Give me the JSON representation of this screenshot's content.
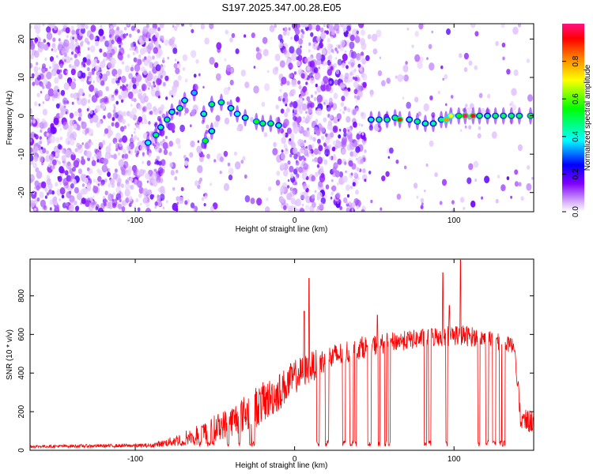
{
  "chart_data": [
    {
      "type": "heatmap",
      "title": "S197.2025.347.00.28.E05",
      "xlabel": "Height of straight line (km)",
      "ylabel": "Frequency (Hz)",
      "xlim": [
        -166,
        150
      ],
      "ylim": [
        -25,
        24
      ],
      "xticks": [
        -100,
        0,
        100
      ],
      "yticks": [
        -20,
        -10,
        0,
        10,
        20
      ],
      "colorbar": {
        "label": "Normalized spectral amplitude",
        "range": [
          0,
          1
        ],
        "ticks": [
          "0.0",
          "0.2",
          "0.4",
          "0.6",
          "0.8"
        ],
        "colors": [
          "#ffffff",
          "#d9b3ff",
          "#8000ff",
          "#0000ff",
          "#00ffff",
          "#00ff00",
          "#ffff00",
          "#ff8000",
          "#ff0000",
          "#ff1080"
        ]
      },
      "noise_segments": [
        {
          "from": -166,
          "to": -82,
          "density": 1.0
        },
        {
          "from": -82,
          "to": -58,
          "density": 0.3
        },
        {
          "from": -58,
          "to": -9,
          "density": 0.15
        },
        {
          "from": -9,
          "to": 44,
          "density": 1.0
        },
        {
          "from": 44,
          "to": 150,
          "density": 0.1
        }
      ],
      "ridge": [
        {
          "x": -92,
          "y": -7,
          "a": 0.4
        },
        {
          "x": -87,
          "y": -5,
          "a": 0.5
        },
        {
          "x": -84,
          "y": -3,
          "a": 0.45
        },
        {
          "x": -80,
          "y": -1,
          "a": 0.5
        },
        {
          "x": -77,
          "y": 1,
          "a": 0.45
        },
        {
          "x": -72,
          "y": 2,
          "a": 0.5
        },
        {
          "x": -69,
          "y": 4,
          "a": 0.45
        },
        {
          "x": -63,
          "y": 6,
          "a": 0.35
        },
        {
          "x": -57,
          "y": 0.5,
          "a": 0.45
        },
        {
          "x": -52,
          "y": 3,
          "a": 0.5
        },
        {
          "x": -46,
          "y": 3.5,
          "a": 0.5
        },
        {
          "x": -40,
          "y": 2,
          "a": 0.45
        },
        {
          "x": -36,
          "y": 0.5,
          "a": 0.4
        },
        {
          "x": -31,
          "y": -0.5,
          "a": 0.45
        },
        {
          "x": -24,
          "y": -1.5,
          "a": 0.55
        },
        {
          "x": -20,
          "y": -2,
          "a": 0.5
        },
        {
          "x": -15,
          "y": -2,
          "a": 0.5
        },
        {
          "x": -10,
          "y": -2.5,
          "a": 0.45
        },
        {
          "x": -56,
          "y": -6.5,
          "a": 0.55
        },
        {
          "x": -52,
          "y": -4,
          "a": 0.45
        },
        {
          "x": 48,
          "y": -1,
          "a": 0.45
        },
        {
          "x": 53,
          "y": -1,
          "a": 0.5
        },
        {
          "x": 58,
          "y": -1,
          "a": 0.5
        },
        {
          "x": 63,
          "y": -0.5,
          "a": 0.5
        },
        {
          "x": 66,
          "y": -1,
          "a": 0.9
        },
        {
          "x": 72,
          "y": -1,
          "a": 0.45
        },
        {
          "x": 77,
          "y": -1.5,
          "a": 0.5
        },
        {
          "x": 82,
          "y": -2,
          "a": 0.45
        },
        {
          "x": 87,
          "y": -2,
          "a": 0.45
        },
        {
          "x": 92,
          "y": -1,
          "a": 0.5
        },
        {
          "x": 95,
          "y": -1,
          "a": 0.8
        },
        {
          "x": 98,
          "y": 0,
          "a": 0.7
        },
        {
          "x": 103,
          "y": 0,
          "a": 0.55
        },
        {
          "x": 107,
          "y": 0,
          "a": 1.0
        },
        {
          "x": 112,
          "y": 0,
          "a": 0.95
        },
        {
          "x": 116,
          "y": 0,
          "a": 0.5
        },
        {
          "x": 121,
          "y": 0,
          "a": 0.45
        },
        {
          "x": 126,
          "y": 0,
          "a": 0.5
        },
        {
          "x": 131,
          "y": 0,
          "a": 0.5
        },
        {
          "x": 136,
          "y": 0,
          "a": 0.5
        },
        {
          "x": 141,
          "y": 0,
          "a": 0.5
        },
        {
          "x": 148,
          "y": 0,
          "a": 0.55
        }
      ]
    },
    {
      "type": "line",
      "title": "",
      "xlabel": "Height of straight line (km)",
      "ylabel": "SNR (10 * v/v)",
      "xlim": [
        -166,
        150
      ],
      "ylim": [
        0,
        990
      ],
      "xticks": [
        -100,
        0,
        100
      ],
      "yticks": [
        0,
        200,
        400,
        600,
        800
      ],
      "series": [
        {
          "name": "SNR",
          "color": "#ff0000",
          "profile": [
            {
              "x": -166,
              "base": 20,
              "amp": 15
            },
            {
              "x": -90,
              "base": 25,
              "amp": 20
            },
            {
              "x": -80,
              "base": 40,
              "amp": 40
            },
            {
              "x": -60,
              "base": 80,
              "amp": 120
            },
            {
              "x": -40,
              "base": 150,
              "amp": 160
            },
            {
              "x": -25,
              "base": 220,
              "amp": 220
            },
            {
              "x": -10,
              "base": 300,
              "amp": 200
            },
            {
              "x": 0,
              "base": 380,
              "amp": 180
            },
            {
              "x": 10,
              "base": 430,
              "amp": 160
            },
            {
              "x": 20,
              "base": 470,
              "amp": 140
            },
            {
              "x": 40,
              "base": 530,
              "amp": 120
            },
            {
              "x": 60,
              "base": 560,
              "amp": 100
            },
            {
              "x": 80,
              "base": 580,
              "amp": 100
            },
            {
              "x": 100,
              "base": 600,
              "amp": 120
            },
            {
              "x": 120,
              "base": 580,
              "amp": 90
            },
            {
              "x": 138,
              "base": 540,
              "amp": 80
            },
            {
              "x": 142,
              "base": 150,
              "amp": 120
            },
            {
              "x": 150,
              "base": 150,
              "amp": 120
            }
          ],
          "peaks": [
            {
              "x": 9,
              "y": 890
            },
            {
              "x": 6,
              "y": 720
            },
            {
              "x": 93,
              "y": 920
            },
            {
              "x": 104,
              "y": 985
            },
            {
              "x": 97,
              "y": 750
            },
            {
              "x": 52,
              "y": 700
            }
          ],
          "dropouts_start": -90,
          "dropouts_end": 140,
          "dropout_level": 20
        }
      ]
    }
  ]
}
